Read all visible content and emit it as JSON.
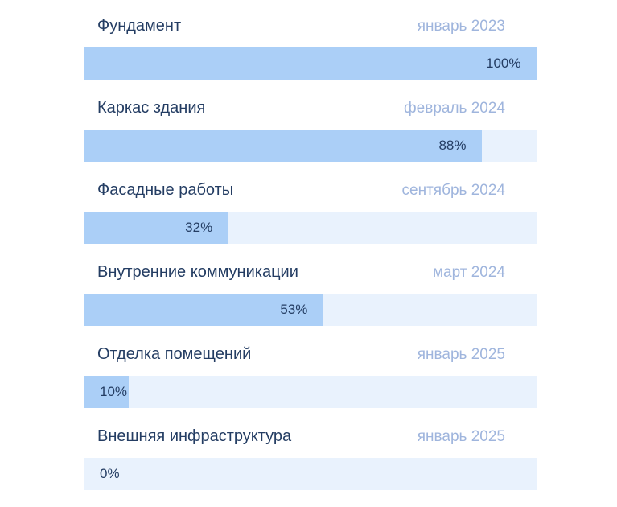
{
  "colors": {
    "background": "#ffffff",
    "bar_fill": "#abcff7",
    "bar_track": "#e9f2fd",
    "title_text": "#243d63",
    "date_text": "#9fb5dd",
    "percent_text": "#243d63"
  },
  "rows": [
    {
      "title": "Фундамент",
      "date": "январь 2023",
      "percent": 100,
      "percent_label": "100%"
    },
    {
      "title": "Каркас здания",
      "date": "февраль 2024",
      "percent": 88,
      "percent_label": "88%"
    },
    {
      "title": "Фасадные работы",
      "date": "сентябрь 2024",
      "percent": 32,
      "percent_label": "32%"
    },
    {
      "title": "Внутренние коммуникации",
      "date": "март 2024",
      "percent": 53,
      "percent_label": "53%"
    },
    {
      "title": "Отделка помещений",
      "date": "январь 2025",
      "percent": 10,
      "percent_label": "10%"
    },
    {
      "title": "Внешняя инфраструктура",
      "date": "январь 2025",
      "percent": 0,
      "percent_label": "0%"
    }
  ],
  "chart_data": {
    "type": "bar",
    "orientation": "horizontal",
    "categories": [
      "Фундамент",
      "Каркас здания",
      "Фасадные работы",
      "Внутренние коммуникации",
      "Отделка помещений",
      "Внешняя инфраструктура"
    ],
    "values": [
      100,
      88,
      32,
      53,
      10,
      0
    ],
    "value_labels": [
      "100%",
      "88%",
      "32%",
      "53%",
      "10%",
      "0%"
    ],
    "annotations": [
      "январь 2023",
      "февраль 2024",
      "сентябрь 2024",
      "март 2024",
      "январь 2025",
      "январь 2025"
    ],
    "unit": "%",
    "xlim": [
      0,
      100
    ],
    "grid": false,
    "legend": false,
    "title": ""
  }
}
